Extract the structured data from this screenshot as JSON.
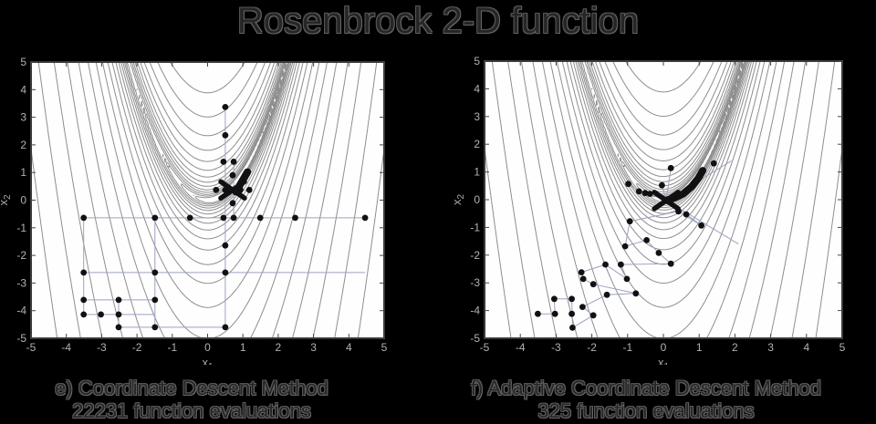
{
  "title": "Rosenbrock 2-D function",
  "colors": {
    "background": "#000000",
    "plot_background": "#fefefe",
    "contour_line": "#8d8d8d",
    "plot_border": "#3a3a3a",
    "tick_color": "#444444",
    "marker": "#111111",
    "path_line": "#9ba3c0",
    "tick_label": "#b2b2b2",
    "axis_label": "#a8a8a8",
    "caption_text": "#262626"
  },
  "chart_data": [
    {
      "type": "contour+scatter",
      "panel_label": "e)",
      "caption_line1": "e) Coordinate Descent Method",
      "caption_line2": "22231 function evaluations",
      "xlabel": "x",
      "xlabel_sub": "1",
      "ylabel": "x",
      "ylabel_sub": "2",
      "xlim": [
        -5,
        5
      ],
      "ylim": [
        -5,
        5
      ],
      "xticks": [
        -5,
        -4,
        -3,
        -2,
        -1,
        0,
        1,
        2,
        3,
        4,
        5
      ],
      "yticks": [
        -5,
        -4,
        -3,
        -2,
        -1,
        0,
        1,
        2,
        3,
        4,
        5
      ],
      "contour": {
        "function": "f(x1,x2) = (1-x1)^2 + 100*(x2-x1^2)^2",
        "levels": [
          2,
          3.3,
          5.5,
          9.2,
          15,
          26,
          43,
          71,
          118,
          197,
          327,
          545,
          907,
          1510,
          2514,
          4186,
          6970,
          11605,
          19322,
          32171,
          53565,
          89186
        ]
      },
      "points": [
        [
          0.5,
          3.37
        ],
        [
          0.5,
          2.35
        ],
        [
          0.45,
          1.39
        ],
        [
          0.74,
          1.39
        ],
        [
          0.71,
          0.9
        ],
        [
          0.24,
          0.37
        ],
        [
          0.5,
          0.37
        ],
        [
          0.93,
          0.37
        ],
        [
          1.18,
          0.37
        ],
        [
          0.71,
          -0.11
        ],
        [
          -3.51,
          -0.64
        ],
        [
          -1.49,
          -0.64
        ],
        [
          -0.5,
          -0.64
        ],
        [
          0.45,
          -0.64
        ],
        [
          0.74,
          -0.64
        ],
        [
          1.49,
          -0.64
        ],
        [
          2.48,
          -0.64
        ],
        [
          4.46,
          -0.64
        ],
        [
          0.5,
          -1.64
        ],
        [
          -3.51,
          -2.62
        ],
        [
          -1.49,
          -2.62
        ],
        [
          0.5,
          -2.62
        ],
        [
          -3.51,
          -3.61
        ],
        [
          -2.52,
          -3.61
        ],
        [
          -1.49,
          -3.61
        ],
        [
          -3.51,
          -4.14
        ],
        [
          -3.02,
          -4.14
        ],
        [
          -2.52,
          -4.14
        ],
        [
          -2.52,
          -4.6
        ],
        [
          -1.49,
          -4.6
        ],
        [
          0.5,
          -4.6
        ]
      ],
      "path_polylines": [
        [
          [
            0.5,
            3.37
          ],
          [
            0.5,
            -4.6
          ]
        ],
        [
          [
            -3.51,
            -0.64
          ],
          [
            4.46,
            -0.64
          ]
        ],
        [
          [
            -3.51,
            -2.62
          ],
          [
            4.46,
            -2.62
          ]
        ],
        [
          [
            -3.51,
            -3.61
          ],
          [
            -1.49,
            -3.61
          ]
        ],
        [
          [
            -3.51,
            -4.14
          ],
          [
            -1.49,
            -4.14
          ]
        ],
        [
          [
            -2.52,
            -4.6
          ],
          [
            0.5,
            -4.6
          ]
        ],
        [
          [
            -3.51,
            -0.64
          ],
          [
            -3.51,
            -4.14
          ]
        ],
        [
          [
            -2.52,
            -3.61
          ],
          [
            -2.52,
            -4.6
          ]
        ],
        [
          [
            -1.49,
            -0.64
          ],
          [
            -1.49,
            -4.6
          ]
        ],
        [
          [
            0.74,
            1.39
          ],
          [
            0.74,
            -0.64
          ]
        ],
        [
          [
            0.24,
            0.37
          ],
          [
            1.18,
            0.37
          ]
        ]
      ],
      "cluster_center": [
        0.71,
        0.37
      ],
      "thick_stroke": [
        [
          0.8,
          0.3
        ],
        [
          1.13,
          1.02
        ]
      ]
    },
    {
      "type": "contour+scatter",
      "panel_label": "f)",
      "caption_line1": "f) Adaptive Coordinate Descent Method",
      "caption_line2": "325 function evaluations",
      "xlabel": "x",
      "xlabel_sub": "1",
      "ylabel": "x",
      "ylabel_sub": "2",
      "xlim": [
        -5,
        5
      ],
      "ylim": [
        -5,
        5
      ],
      "xticks": [
        -5,
        -4,
        -3,
        -2,
        -1,
        0,
        1,
        2,
        3,
        4,
        5
      ],
      "yticks": [
        -5,
        -4,
        -3,
        -2,
        -1,
        0,
        1,
        2,
        3,
        4,
        5
      ],
      "contour": {
        "function": "f(x1,x2) = (1-x1)^2 + 100*(x2-x1^2)^2",
        "levels": [
          2,
          3.3,
          5.5,
          9.2,
          15,
          26,
          43,
          71,
          118,
          197,
          327,
          545,
          907,
          1510,
          2514,
          4186,
          6970,
          11605,
          19322,
          32171,
          53565,
          89186
        ]
      },
      "points": [
        [
          -3.51,
          -4.12
        ],
        [
          -3.05,
          -3.58
        ],
        [
          -3.03,
          -4.12
        ],
        [
          -2.56,
          -3.58
        ],
        [
          -2.56,
          -4.12
        ],
        [
          -2.54,
          -4.62
        ],
        [
          -2.29,
          -2.62
        ],
        [
          -2.24,
          -2.86
        ],
        [
          -1.96,
          -3.05
        ],
        [
          -2.26,
          -3.87
        ],
        [
          -1.96,
          -4.17
        ],
        [
          -1.62,
          -2.34
        ],
        [
          -1.58,
          -3.43
        ],
        [
          -1.19,
          -2.34
        ],
        [
          -1.07,
          -1.68
        ],
        [
          -1.02,
          -2.86
        ],
        [
          -0.94,
          -0.78
        ],
        [
          -0.77,
          -3.38
        ],
        [
          -0.47,
          -1.46
        ],
        [
          -0.13,
          -1.92
        ],
        [
          0.21,
          -2.31
        ],
        [
          0.42,
          -0.42
        ],
        [
          0.64,
          -0.53
        ],
        [
          1.06,
          -0.93
        ],
        [
          -0.98,
          0.57
        ],
        [
          -0.68,
          0.3
        ],
        [
          -0.51,
          0.24
        ],
        [
          -0.38,
          0.21
        ],
        [
          -0.04,
          0.52
        ],
        [
          0.21,
          1.14
        ],
        [
          1.41,
          1.31
        ]
      ],
      "path_polylines": [
        [
          [
            -3.51,
            -4.12
          ],
          [
            -3.03,
            -4.12
          ],
          [
            -3.05,
            -3.58
          ],
          [
            -2.56,
            -3.58
          ],
          [
            -2.54,
            -4.62
          ],
          [
            -1.96,
            -4.17
          ],
          [
            -2.26,
            -3.87
          ],
          [
            -1.58,
            -3.43
          ],
          [
            -0.77,
            -3.38
          ],
          [
            -1.96,
            -3.05
          ],
          [
            -2.24,
            -2.86
          ],
          [
            -2.29,
            -2.62
          ],
          [
            -1.62,
            -2.34
          ],
          [
            -1.02,
            -2.86
          ],
          [
            -1.19,
            -2.34
          ],
          [
            0.21,
            -2.31
          ],
          [
            -0.13,
            -1.92
          ],
          [
            -0.47,
            -1.46
          ],
          [
            -1.07,
            -1.68
          ],
          [
            -0.94,
            -0.78
          ],
          [
            0.42,
            -0.42
          ],
          [
            1.06,
            -0.93
          ],
          [
            0.64,
            -0.53
          ],
          [
            0.08,
            -0.03
          ]
        ],
        [
          [
            -0.98,
            0.57
          ],
          [
            -0.68,
            0.3
          ],
          [
            -0.51,
            0.24
          ],
          [
            -0.38,
            0.21
          ],
          [
            0.08,
            -0.03
          ]
        ],
        [
          [
            -0.04,
            0.52
          ],
          [
            0.08,
            -0.03
          ]
        ],
        [
          [
            0.21,
            1.14
          ],
          [
            0.08,
            -0.03
          ]
        ],
        [
          [
            1.9,
            1.4
          ],
          [
            0.08,
            -0.03
          ]
        ],
        [
          [
            2.1,
            -1.6
          ],
          [
            0.08,
            -0.03
          ]
        ]
      ],
      "cluster_center": [
        0.08,
        -0.03
      ],
      "thick_stroke": [
        [
          0.1,
          -0.02
        ],
        [
          0.32,
          0.07
        ],
        [
          0.55,
          0.21
        ],
        [
          0.78,
          0.46
        ],
        [
          0.97,
          0.76
        ],
        [
          1.1,
          1.05
        ]
      ]
    }
  ]
}
